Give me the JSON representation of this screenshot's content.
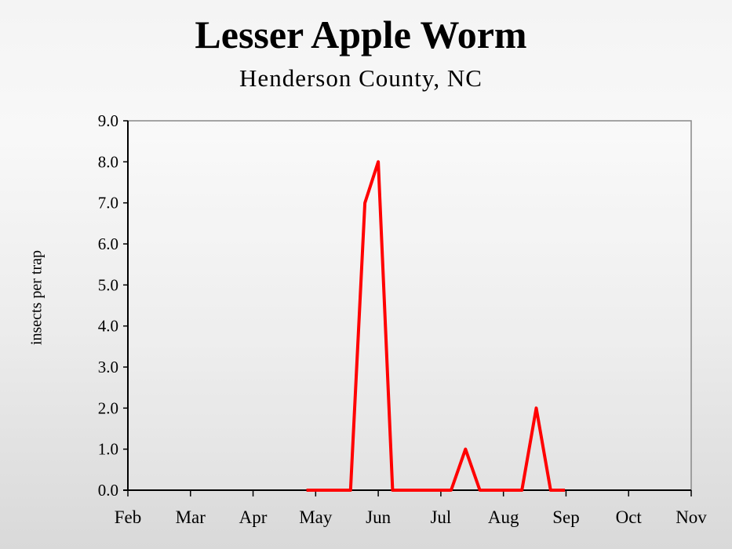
{
  "chart_data": {
    "type": "line",
    "title": "Lesser Apple Worm",
    "subtitle": "Henderson County, NC",
    "xlabel": "",
    "ylabel": "insects per trap",
    "ylim": [
      0,
      9
    ],
    "yticks": [
      "0.0",
      "1.0",
      "2.0",
      "3.0",
      "4.0",
      "5.0",
      "6.0",
      "7.0",
      "8.0",
      "9.0"
    ],
    "xticks": [
      "Feb",
      "Mar",
      "Apr",
      "May",
      "Jun",
      "Jul",
      "Aug",
      "Sep",
      "Oct",
      "Nov"
    ],
    "grid": false,
    "legend": "none",
    "series": [
      {
        "name": "Lesser Apple Worm",
        "color": "#ff0000",
        "points": [
          {
            "x": "Apr 27",
            "y": 0.0
          },
          {
            "x": "May 4",
            "y": 0.0
          },
          {
            "x": "May 11",
            "y": 0.0
          },
          {
            "x": "May 18",
            "y": 0.0
          },
          {
            "x": "May 25",
            "y": 7.0
          },
          {
            "x": "Jun 1",
            "y": 8.0
          },
          {
            "x": "Jun 8",
            "y": 0.0
          },
          {
            "x": "Jun 15",
            "y": 0.0
          },
          {
            "x": "Jun 22",
            "y": 0.0
          },
          {
            "x": "Jun 29",
            "y": 0.0
          },
          {
            "x": "Jul 6",
            "y": 0.0
          },
          {
            "x": "Jul 13",
            "y": 1.0
          },
          {
            "x": "Jul 20",
            "y": 0.0
          },
          {
            "x": "Jul 27",
            "y": 0.0
          },
          {
            "x": "Aug 3",
            "y": 0.0
          },
          {
            "x": "Aug 10",
            "y": 0.0
          },
          {
            "x": "Aug 17",
            "y": 2.0
          },
          {
            "x": "Aug 24",
            "y": 0.0
          },
          {
            "x": "Aug 31",
            "y": 0.0
          }
        ]
      }
    ]
  }
}
